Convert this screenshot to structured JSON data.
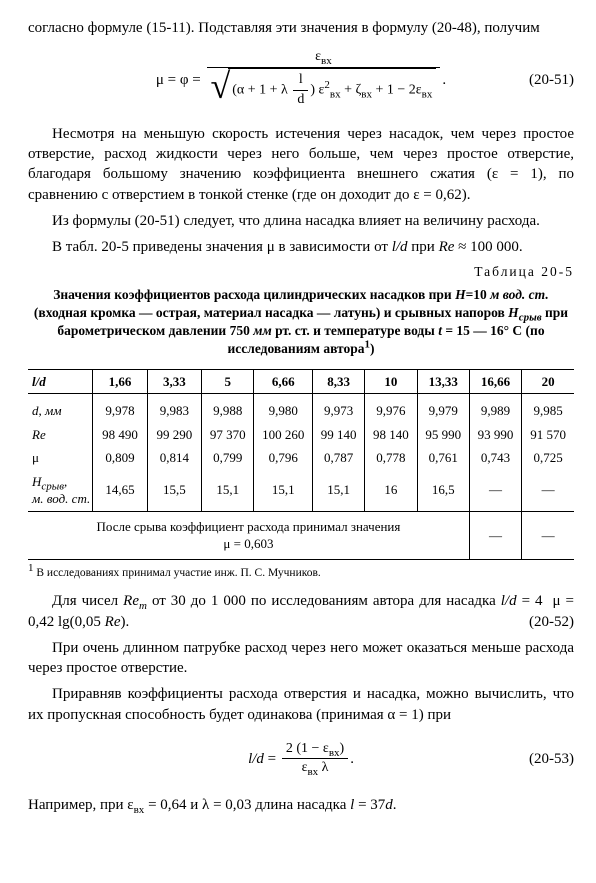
{
  "intro_text": "согласно формуле (15-11). Подставляя эти значения в формулу (20-48), получим",
  "eq1": {
    "lhs": "μ = φ =",
    "num": "ε<span class='eq-sub'>вх</span>",
    "den_inner": "(α + 1 + λ <span class='frac'><span class='num'>l</span><span class='den'>d</span></span>) ε<span class='eq-sup'>2</span><span class='eq-sub'>вх</span> + ζ<span class='eq-sub'>вх</span> + 1 − 2ε<span class='eq-sub'>вх</span>",
    "number": "(20-51)"
  },
  "p1": "Несмотря на меньшую скорость истечения через насадок, чем через простое отверстие, расход жидкости через него больше, чем через простое отверстие, благодаря большому значению коэффициента внешнего сжатия (ε = 1), по сравнению с отверстием в тонкой стенке (где он доходит до ε = 0,62).",
  "p2": "Из формулы (20-51) следует, что длина насадка влияет на величину расхода.",
  "p3": "В табл. 20-5 приведены значения μ в зависимости от <span class='italic'>l/d</span> при <span class='italic'>Re</span> ≈ 100 000.",
  "table_label": "Таблица 20-5",
  "table_title": "Значения коэффициентов расхода цилиндрических насадков при <span class='italic'>H</span>=10 <span class='italic'>м вод. ст.</span> (входная кромка — острая, материал насадка — латунь) и срывных напоров <span class='italic'>H<span class='eq-sub'>срыв</span></span> при барометрическом давлении 750 <span class='italic'>мм</span> рт. ст. и температуре воды <span class='italic'>t</span> = 15 — 16° C (по исследованиям автора<span class='eq-sup'>1</span>)",
  "table": {
    "head": [
      "<span class='italic'>l/d</span>",
      "1,66",
      "3,33",
      "5",
      "6,66",
      "8,33",
      "10",
      "13,33",
      "16,66",
      "20"
    ],
    "rows": [
      {
        "label": "<span class='italic'>d, мм</span>",
        "vals": [
          "9,978",
          "9,983",
          "9,988",
          "9,980",
          "9,973",
          "9,976",
          "9,979",
          "9,989",
          "9,985"
        ]
      },
      {
        "label": "<span class='italic'>Re</span>",
        "vals": [
          "98 490",
          "99 290",
          "97 370",
          "100 260",
          "99 140",
          "98 140",
          "95 990",
          "93 990",
          "91 570"
        ]
      },
      {
        "label": "μ",
        "vals": [
          "0,809",
          "0,814",
          "0,799",
          "0,796",
          "0,787",
          "0,778",
          "0,761",
          "0,743",
          "0,725"
        ]
      },
      {
        "label": "<span class='italic'>H<span class='eq-sub'>срыв</span>,</span><br><span class='italic small'>м. вод. ст.</span>",
        "vals": [
          "14,65",
          "15,5",
          "15,1",
          "15,1",
          "15,1",
          "16",
          "16,5",
          "—",
          "—"
        ]
      }
    ],
    "after_label": "После срыва коэффициент расхода принимал значения<br>μ = 0,603",
    "after_vals": [
      "—",
      "—"
    ]
  },
  "footnote": "<span class='eq-sup'>1</span> В исследованиях принимал участие инж. П. С. Мучников.",
  "p4": "Для чисел <span class='italic'>Re<span class='eq-sub'>m</span></span> от 30 до 1 000 по исследованиям автора для насадка <span class='italic'>l/d</span> = 4 &nbsp;μ = 0,42 lg(0,05 <span class='italic'>Re</span>). <span style='float:right'>(20-52)</span>",
  "p5": "При очень длинном патрубке расход через него может оказаться меньше расхода через простое отверстие.",
  "p6": "Приравняв коэффициенты расхода отверстия и насадка, можно вычислить, что их пропускная способность будет одинакова (принимая α = 1) при",
  "eq2": {
    "lhs": "<span class='italic'>l/d</span> =",
    "num": "2 (1 − ε<span class='eq-sub'>вх</span>)",
    "den": "ε<span class='eq-sub'>вх</span> λ",
    "number": "(20-53)"
  },
  "p7": "Например, при ε<span class='eq-sub'>вх</span> = 0,64 и λ = 0,03 длина насадка <span class='italic'>l</span> = 37<span class='italic'>d</span>."
}
